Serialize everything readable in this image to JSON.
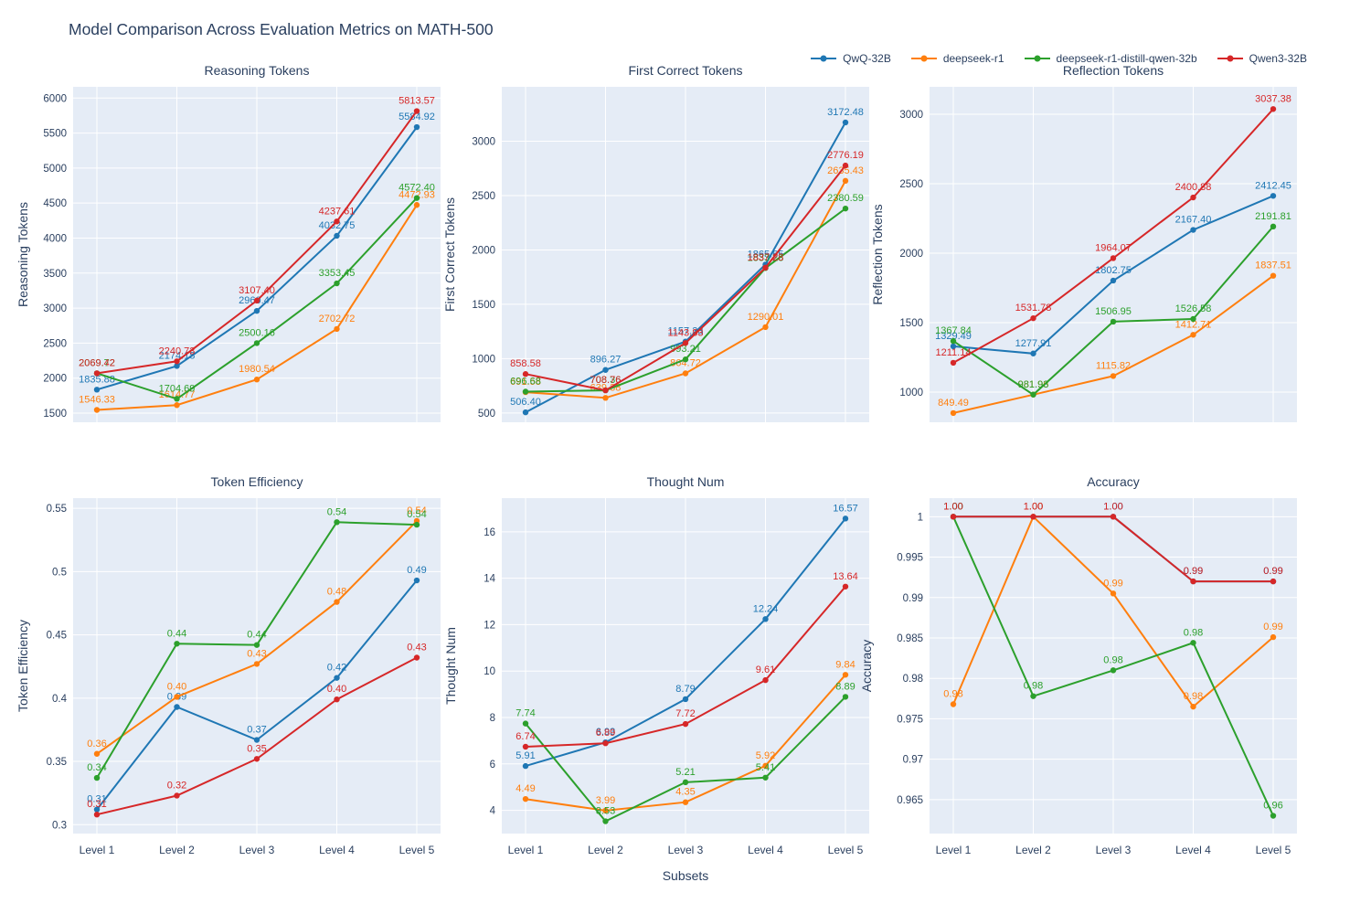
{
  "title": "Model Comparison Across Evaluation Metrics on MATH-500",
  "xlabel": "Subsets",
  "categories": [
    "Level 1",
    "Level 2",
    "Level 3",
    "Level 4",
    "Level 5"
  ],
  "style": {
    "plot_bg": "#e5ecf6",
    "grid": "#ffffff",
    "text": "#2a3f5f"
  },
  "legend": {
    "position": "top-right",
    "items": [
      {
        "label": "QwQ-32B",
        "color": "#1f77b4"
      },
      {
        "label": "deepseek-r1",
        "color": "#ff7f0e"
      },
      {
        "label": "deepseek-r1-distill-qwen-32b",
        "color": "#2ca02c"
      },
      {
        "label": "Qwen3-32B",
        "color": "#d62728"
      }
    ]
  },
  "chart_data": [
    {
      "type": "line",
      "title": "Reasoning Tokens",
      "ylabel": "Reasoning Tokens",
      "row": 0,
      "col": 0,
      "decimals": 2,
      "grid": true,
      "ylim": [
        1370,
        6160
      ],
      "ytick_values": [
        1500,
        2000,
        2500,
        3000,
        3500,
        4000,
        4500,
        5000,
        5500,
        6000
      ],
      "ytick_labels": [
        "1500",
        "2000",
        "2500",
        "3000",
        "3500",
        "4000",
        "4500",
        "5000",
        "5500",
        "6000"
      ],
      "y_title_offset": 50,
      "series": [
        {
          "name": "QwQ-32B",
          "color": "#1f77b4",
          "values": [
            1835.88,
            2174.18,
            2960.47,
            4032.75,
            5584.92
          ]
        },
        {
          "name": "deepseek-r1",
          "color": "#ff7f0e",
          "values": [
            1546.33,
            1614.77,
            1980.54,
            2702.72,
            4472.93
          ]
        },
        {
          "name": "deepseek-r1-distill-qwen-32b",
          "color": "#2ca02c",
          "values": [
            2069.72,
            1704.69,
            2500.16,
            3353.45,
            4572.4
          ]
        },
        {
          "name": "Qwen3-32B",
          "color": "#d62728",
          "values": [
            2069.42,
            2240.73,
            3107.4,
            4237.61,
            5813.57
          ]
        }
      ]
    },
    {
      "type": "line",
      "title": "First Correct Tokens",
      "ylabel": "First Correct Tokens",
      "row": 0,
      "col": 1,
      "decimals": 2,
      "grid": true,
      "ylim": [
        415,
        3500
      ],
      "ytick_values": [
        500,
        1000,
        1500,
        2000,
        2500,
        3000
      ],
      "ytick_labels": [
        "500",
        "1000",
        "1500",
        "2000",
        "2500",
        "3000"
      ],
      "y_title_offset": 52,
      "series": [
        {
          "name": "QwQ-32B",
          "color": "#1f77b4",
          "values": [
            506.4,
            896.27,
            1157.33,
            1865.65,
            3172.48
          ]
        },
        {
          "name": "deepseek-r1",
          "color": "#ff7f0e",
          "values": [
            691.58,
            639.38,
            864.72,
            1290.01,
            2635.43
          ]
        },
        {
          "name": "deepseek-r1-distill-qwen-32b",
          "color": "#2ca02c",
          "values": [
            696.68,
            708.36,
            993.21,
            1833.23,
            2380.59
          ]
        },
        {
          "name": "Qwen3-32B",
          "color": "#d62728",
          "values": [
            858.58,
            708.76,
            1143.83,
            1837.28,
            2776.19
          ]
        }
      ]
    },
    {
      "type": "line",
      "title": "Reflection Tokens",
      "ylabel": "Reflection Tokens",
      "row": 0,
      "col": 2,
      "decimals": 2,
      "grid": true,
      "ylim": [
        783,
        3197
      ],
      "ytick_values": [
        1000,
        1500,
        2000,
        2500,
        3000
      ],
      "ytick_labels": [
        "1000",
        "1500",
        "2000",
        "2500",
        "3000"
      ],
      "y_title_offset": 52,
      "series": [
        {
          "name": "QwQ-32B",
          "color": "#1f77b4",
          "values": [
            1329.49,
            1277.91,
            1802.75,
            2167.4,
            2412.45
          ]
        },
        {
          "name": "deepseek-r1",
          "color": "#ff7f0e",
          "values": [
            849.49,
            981.96,
            1115.82,
            1412.71,
            1837.51
          ]
        },
        {
          "name": "deepseek-r1-distill-qwen-32b",
          "color": "#2ca02c",
          "values": [
            1367.84,
            981.93,
            1506.95,
            1526.58,
            2191.81
          ]
        },
        {
          "name": "Qwen3-32B",
          "color": "#d62728",
          "values": [
            1211.14,
            1531.78,
            1964.07,
            2400.88,
            3037.38
          ]
        }
      ]
    },
    {
      "type": "line",
      "title": "Token Efficiency",
      "ylabel": "Token Efficiency",
      "row": 1,
      "col": 0,
      "decimals": 2,
      "grid": true,
      "ylim": [
        0.293,
        0.558
      ],
      "ytick_values": [
        0.3,
        0.35,
        0.4,
        0.45,
        0.5,
        0.55
      ],
      "ytick_labels": [
        "0.3",
        "0.35",
        "0.4",
        "0.45",
        "0.5",
        "0.55"
      ],
      "y_title_offset": 50,
      "series": [
        {
          "name": "QwQ-32B",
          "color": "#1f77b4",
          "values": [
            0.312,
            0.393,
            0.367,
            0.416,
            0.493
          ]
        },
        {
          "name": "deepseek-r1",
          "color": "#ff7f0e",
          "values": [
            0.356,
            0.401,
            0.427,
            0.476,
            0.54
          ]
        },
        {
          "name": "deepseek-r1-distill-qwen-32b",
          "color": "#2ca02c",
          "values": [
            0.337,
            0.443,
            0.442,
            0.539,
            0.537
          ]
        },
        {
          "name": "Qwen3-32B",
          "color": "#d62728",
          "values": [
            0.308,
            0.323,
            0.352,
            0.399,
            0.432
          ]
        }
      ]
    },
    {
      "type": "line",
      "title": "Thought Num",
      "ylabel": "Thought Num",
      "row": 1,
      "col": 1,
      "decimals": 2,
      "grid": true,
      "ylim": [
        3.0,
        17.45
      ],
      "ytick_values": [
        4,
        6,
        8,
        10,
        12,
        14,
        16
      ],
      "ytick_labels": [
        "4",
        "6",
        "8",
        "10",
        "12",
        "14",
        "16"
      ],
      "y_title_offset": 51,
      "series": [
        {
          "name": "QwQ-32B",
          "color": "#1f77b4",
          "values": [
            5.91,
            6.93,
            8.79,
            12.24,
            16.57
          ]
        },
        {
          "name": "deepseek-r1",
          "color": "#ff7f0e",
          "values": [
            4.49,
            3.99,
            4.35,
            5.92,
            9.84
          ]
        },
        {
          "name": "deepseek-r1-distill-qwen-32b",
          "color": "#2ca02c",
          "values": [
            7.74,
            3.53,
            5.21,
            5.41,
            8.89
          ]
        },
        {
          "name": "Qwen3-32B",
          "color": "#d62728",
          "values": [
            6.74,
            6.89,
            7.72,
            9.61,
            13.64
          ]
        }
      ]
    },
    {
      "type": "line",
      "title": "Accuracy",
      "ylabel": "Accuracy",
      "row": 1,
      "col": 2,
      "decimals": 2,
      "grid": true,
      "ylim": [
        0.9608,
        1.0023
      ],
      "ytick_values": [
        0.965,
        0.97,
        0.975,
        0.98,
        0.985,
        0.99,
        0.995,
        1
      ],
      "ytick_labels": [
        "0.965",
        "0.97",
        "0.975",
        "0.98",
        "0.985",
        "0.99",
        "0.995",
        "1"
      ],
      "y_title_offset": 64,
      "series": [
        {
          "name": "QwQ-32B",
          "color": "#1f77b4",
          "values": [
            1.0,
            1.0,
            1.0,
            0.992,
            0.992
          ]
        },
        {
          "name": "deepseek-r1",
          "color": "#ff7f0e",
          "values": [
            0.9768,
            1.0,
            0.9905,
            0.9765,
            0.9851
          ]
        },
        {
          "name": "deepseek-r1-distill-qwen-32b",
          "color": "#2ca02c",
          "values": [
            1.0,
            0.9778,
            0.981,
            0.9844,
            0.963
          ]
        },
        {
          "name": "Qwen3-32B",
          "color": "#d62728",
          "values": [
            1.0,
            1.0,
            1.0,
            0.992,
            0.992
          ]
        }
      ]
    }
  ]
}
